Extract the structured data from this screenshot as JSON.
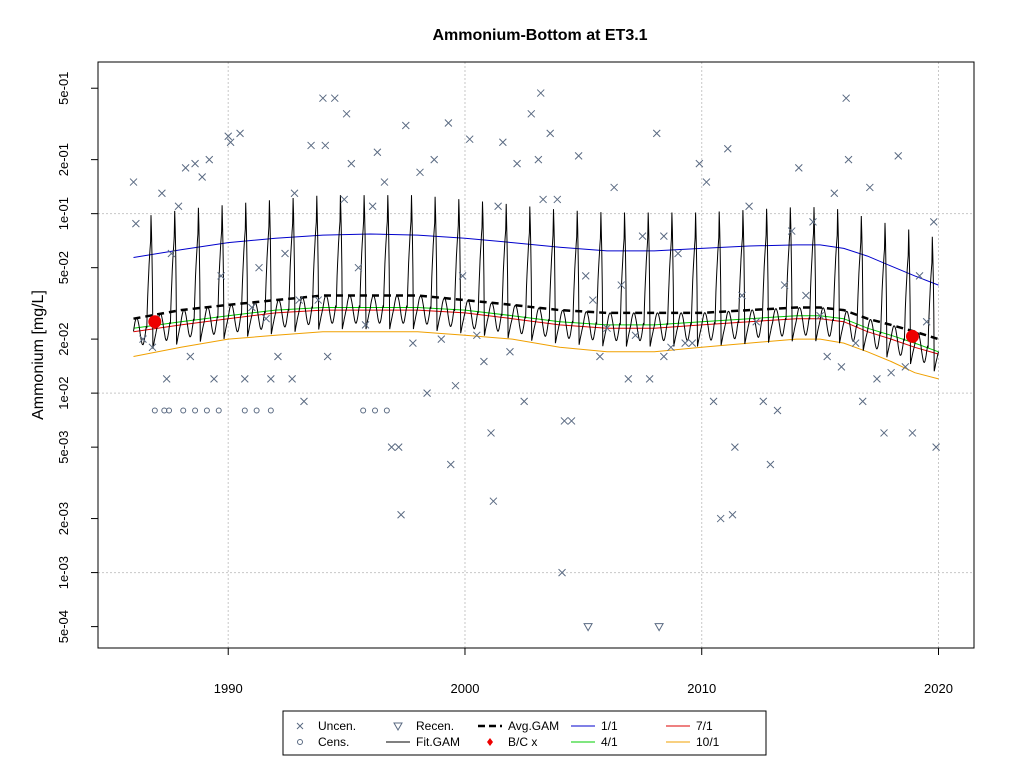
{
  "chart_data": {
    "type": "scatter",
    "title": "Ammonium-Bottom at ET3.1",
    "xlabel": "",
    "ylabel": "Ammonium [mg/L]",
    "y_scale": "log",
    "xlim": [
      1984.5,
      2021.5
    ],
    "ylim": [
      0.00038,
      0.7
    ],
    "x_ticks": [
      1990,
      2000,
      2010,
      2020
    ],
    "x_tick_labels": [
      "1990",
      "2000",
      "2010",
      "2020"
    ],
    "y_ticks": [
      0.0005,
      0.001,
      0.002,
      0.005,
      0.01,
      0.02,
      0.05,
      0.1,
      0.2,
      0.5
    ],
    "y_tick_labels": [
      "5e-04",
      "1e-03",
      "2e-03",
      "5e-03",
      "1e-02",
      "2e-02",
      "5e-02",
      "1e-01",
      "2e-01",
      "5e-01"
    ],
    "grid": true,
    "legend_placement": "bottom",
    "legend": [
      {
        "label": "Uncen.",
        "symbol": "x",
        "color": "#5a6a82"
      },
      {
        "label": "Cens.",
        "symbol": "circle",
        "color": "#5a6a82"
      },
      {
        "label": "Recen.",
        "symbol": "triangle-down",
        "color": "#5a6a82"
      },
      {
        "label": "Fit.GAM",
        "symbol": "line",
        "color": "#000000"
      },
      {
        "label": "Avg.GAM",
        "symbol": "dashed-line",
        "color": "#000000"
      },
      {
        "label": "B/C x",
        "symbol": "diamond",
        "color": "#ee0000"
      },
      {
        "label": "1/1",
        "symbol": "line",
        "color": "#0000cc"
      },
      {
        "label": "4/1",
        "symbol": "line",
        "color": "#00cc00"
      },
      {
        "label": "7/1",
        "symbol": "line",
        "color": "#dd0000"
      },
      {
        "label": "10/1",
        "symbol": "line",
        "color": "#f0a000"
      }
    ],
    "series": [
      {
        "name": "1/1",
        "color": "#0000cc",
        "x": [
          1986,
          1988,
          1990,
          1992,
          1994,
          1996,
          1998,
          2000,
          2002,
          2004,
          2006,
          2008,
          2010,
          2012,
          2014,
          2015,
          2016,
          2017,
          2018,
          2019,
          2020
        ],
        "y": [
          0.057,
          0.063,
          0.069,
          0.073,
          0.076,
          0.077,
          0.076,
          0.073,
          0.069,
          0.065,
          0.062,
          0.062,
          0.064,
          0.066,
          0.067,
          0.067,
          0.064,
          0.058,
          0.051,
          0.045,
          0.04
        ]
      },
      {
        "name": "4/1",
        "color": "#00cc00",
        "x": [
          1986,
          1988,
          1990,
          1992,
          1994,
          1996,
          1998,
          2000,
          2002,
          2004,
          2006,
          2008,
          2010,
          2012,
          2014,
          2015,
          2016,
          2017,
          2018,
          2019,
          2020
        ],
        "y": [
          0.023,
          0.025,
          0.027,
          0.029,
          0.03,
          0.03,
          0.03,
          0.029,
          0.027,
          0.025,
          0.024,
          0.024,
          0.025,
          0.026,
          0.027,
          0.027,
          0.026,
          0.023,
          0.021,
          0.019,
          0.017
        ]
      },
      {
        "name": "7/1",
        "color": "#dd0000",
        "x": [
          1986,
          1988,
          1990,
          1992,
          1994,
          1996,
          1998,
          2000,
          2002,
          2004,
          2006,
          2008,
          2010,
          2012,
          2014,
          2015,
          2016,
          2017,
          2018,
          2019,
          2020
        ],
        "y": [
          0.022,
          0.024,
          0.026,
          0.028,
          0.029,
          0.029,
          0.029,
          0.028,
          0.026,
          0.024,
          0.023,
          0.023,
          0.024,
          0.025,
          0.026,
          0.026,
          0.025,
          0.022,
          0.02,
          0.018,
          0.0165
        ]
      },
      {
        "name": "10/1",
        "color": "#f0a000",
        "x": [
          1986,
          1988,
          1990,
          1992,
          1994,
          1996,
          1998,
          2000,
          2002,
          2004,
          2006,
          2008,
          2010,
          2012,
          2014,
          2015,
          2016,
          2017,
          2018,
          2019,
          2020
        ],
        "y": [
          0.016,
          0.018,
          0.02,
          0.021,
          0.022,
          0.022,
          0.022,
          0.021,
          0.02,
          0.018,
          0.017,
          0.017,
          0.018,
          0.019,
          0.02,
          0.02,
          0.019,
          0.017,
          0.015,
          0.013,
          0.012
        ]
      },
      {
        "name": "Avg.GAM",
        "color": "#000000",
        "dashed": true,
        "x": [
          1986,
          1988,
          1990,
          1992,
          1994,
          1996,
          1998,
          2000,
          2002,
          2004,
          2006,
          2008,
          2010,
          2012,
          2014,
          2015,
          2016,
          2017,
          2018,
          2019,
          2020
        ],
        "y": [
          0.026,
          0.029,
          0.031,
          0.033,
          0.035,
          0.035,
          0.035,
          0.033,
          0.031,
          0.029,
          0.028,
          0.028,
          0.028,
          0.029,
          0.03,
          0.03,
          0.029,
          0.026,
          0.024,
          0.022,
          0.02
        ]
      },
      {
        "name": "Fit.GAM",
        "color": "#000000",
        "seasonal": true,
        "x_start": 1986,
        "x_end": 2020,
        "peak_factor": 2.3,
        "trough_factor": 0.65
      }
    ],
    "bc_points": {
      "x": [
        1986.9,
        2018.9
      ],
      "y": [
        0.025,
        0.0207
      ]
    },
    "uncensored": {
      "x": [
        1986.0,
        1986.1,
        1986.4,
        1986.8,
        1987.2,
        1987.4,
        1987.6,
        1987.9,
        1988.2,
        1988.4,
        1988.6,
        1988.9,
        1989.2,
        1989.4,
        1989.7,
        1990.0,
        1990.1,
        1990.5,
        1990.7,
        1991.0,
        1991.3,
        1991.6,
        1991.8,
        1992.1,
        1992.4,
        1992.7,
        1993.0,
        1993.2,
        1993.5,
        1993.8,
        1994.0,
        1994.2,
        1994.5,
        1994.9,
        1995.2,
        1995.5,
        1995.8,
        1996.1,
        1996.3,
        1996.6,
        1996.9,
        1997.2,
        1997.5,
        1997.8,
        1998.1,
        1998.4,
        1998.7,
        1999.0,
        1999.3,
        1999.6,
        1999.9,
        2000.2,
        2000.5,
        2000.8,
        2001.1,
        2001.4,
        2001.6,
        2001.9,
        2002.2,
        2002.5,
        2002.8,
        2003.1,
        2003.3,
        2003.6,
        2003.9,
        2004.2,
        2004.5,
        2004.8,
        2005.1,
        2005.4,
        2005.7,
        2006.0,
        2006.3,
        2006.6,
        2006.9,
        2007.2,
        2007.5,
        2007.8,
        2008.1,
        2008.4,
        2008.7,
        2009.0,
        2009.3,
        2009.6,
        2009.9,
        2010.2,
        2010.5,
        2010.8,
        2011.1,
        2011.4,
        2011.7,
        2012.0,
        2012.3,
        2012.6,
        2012.9,
        2013.2,
        2013.5,
        2013.8,
        2014.1,
        2014.4,
        2014.7,
        2015.0,
        2015.3,
        2015.6,
        2015.9,
        2016.2,
        2016.5,
        2016.8,
        2017.1,
        2017.4,
        2017.7,
        2018.0,
        2018.3,
        2018.6,
        2018.9,
        2019.2,
        2019.5,
        2019.8,
        2019.9,
        1995.0,
        1994.1,
        1992.8,
        2003.2,
        2001.2,
        1997.3,
        2008.4,
        2016.1,
        1999.4,
        2004.1,
        2011.3
      ],
      "y": [
        0.15,
        0.088,
        0.02,
        0.018,
        0.13,
        0.012,
        0.06,
        0.11,
        0.18,
        0.016,
        0.19,
        0.16,
        0.2,
        0.012,
        0.045,
        0.27,
        0.25,
        0.28,
        0.012,
        0.03,
        0.05,
        0.026,
        0.012,
        0.016,
        0.06,
        0.012,
        0.033,
        0.009,
        0.24,
        0.033,
        0.44,
        0.016,
        0.44,
        0.12,
        0.19,
        0.05,
        0.024,
        0.11,
        0.22,
        0.15,
        0.005,
        0.005,
        0.31,
        0.019,
        0.17,
        0.01,
        0.2,
        0.02,
        0.32,
        0.011,
        0.045,
        0.26,
        0.021,
        0.015,
        0.006,
        0.11,
        0.25,
        0.017,
        0.19,
        0.009,
        0.36,
        0.2,
        0.12,
        0.28,
        0.12,
        0.007,
        0.007,
        0.21,
        0.045,
        0.033,
        0.016,
        0.023,
        0.14,
        0.04,
        0.012,
        0.021,
        0.075,
        0.012,
        0.28,
        0.016,
        0.018,
        0.06,
        0.019,
        0.019,
        0.19,
        0.15,
        0.009,
        0.002,
        0.23,
        0.005,
        0.035,
        0.11,
        0.025,
        0.009,
        0.004,
        0.008,
        0.04,
        0.08,
        0.18,
        0.035,
        0.09,
        0.027,
        0.016,
        0.13,
        0.014,
        0.2,
        0.019,
        0.009,
        0.14,
        0.012,
        0.006,
        0.013,
        0.21,
        0.014,
        0.006,
        0.045,
        0.025,
        0.09,
        0.005,
        0.36,
        0.24,
        0.13,
        0.47,
        0.0025,
        0.0021,
        0.075,
        0.44,
        0.004,
        0.001,
        0.0021
      ],
      "color": "#5a6a82"
    },
    "censored": {
      "x": [
        1986.9,
        1987.3,
        1987.5,
        1988.1,
        1988.6,
        1989.1,
        1989.6,
        1990.7,
        1991.2,
        1991.8,
        1995.7,
        1996.2,
        1996.7
      ],
      "y": [
        0.008,
        0.008,
        0.008,
        0.008,
        0.008,
        0.008,
        0.008,
        0.008,
        0.008,
        0.008,
        0.008,
        0.008,
        0.008
      ],
      "color": "#5a6a82"
    },
    "recensored": {
      "x": [
        2005.2,
        2008.2
      ],
      "y": [
        0.0005,
        0.0005
      ],
      "color": "#5a6a82"
    }
  }
}
